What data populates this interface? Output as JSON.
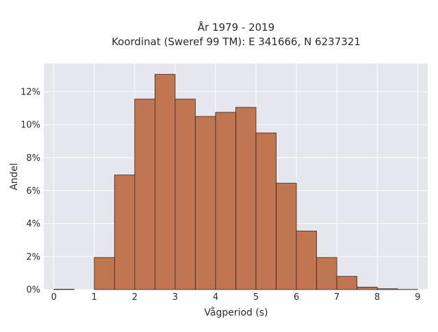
{
  "chart_data": {
    "type": "bar",
    "title": "År 1979 - 2019",
    "subtitle": "Koordinat (Sweref 99 TM): E 341666, N 6237321",
    "xlabel": "Vågperiod (s)",
    "ylabel": "Andel",
    "bin_width": 0.5,
    "bins": [
      {
        "start": 0.0,
        "value": 0.02
      },
      {
        "start": 0.5,
        "value": 0.0
      },
      {
        "start": 1.0,
        "value": 1.95
      },
      {
        "start": 1.5,
        "value": 6.95
      },
      {
        "start": 2.0,
        "value": 11.55
      },
      {
        "start": 2.5,
        "value": 13.05
      },
      {
        "start": 3.0,
        "value": 11.55
      },
      {
        "start": 3.5,
        "value": 10.5
      },
      {
        "start": 4.0,
        "value": 10.75
      },
      {
        "start": 4.5,
        "value": 11.05
      },
      {
        "start": 5.0,
        "value": 9.5
      },
      {
        "start": 5.5,
        "value": 6.45
      },
      {
        "start": 6.0,
        "value": 3.55
      },
      {
        "start": 6.5,
        "value": 1.95
      },
      {
        "start": 7.0,
        "value": 0.8
      },
      {
        "start": 7.5,
        "value": 0.15
      },
      {
        "start": 8.0,
        "value": 0.05
      },
      {
        "start": 8.5,
        "value": 0.01
      }
    ],
    "xticks": [
      "0",
      "1",
      "2",
      "3",
      "4",
      "5",
      "6",
      "7",
      "8",
      "9"
    ],
    "yticks": [
      "0%",
      "2%",
      "4%",
      "6%",
      "8%",
      "10%",
      "12%"
    ],
    "xlim": [
      -0.25,
      9.25
    ],
    "ylim": [
      0,
      13.7
    ],
    "grid": true,
    "bar_color": "#c07650",
    "bar_edge_color": "#3a2418",
    "plot_background": "#e6e6ee"
  }
}
